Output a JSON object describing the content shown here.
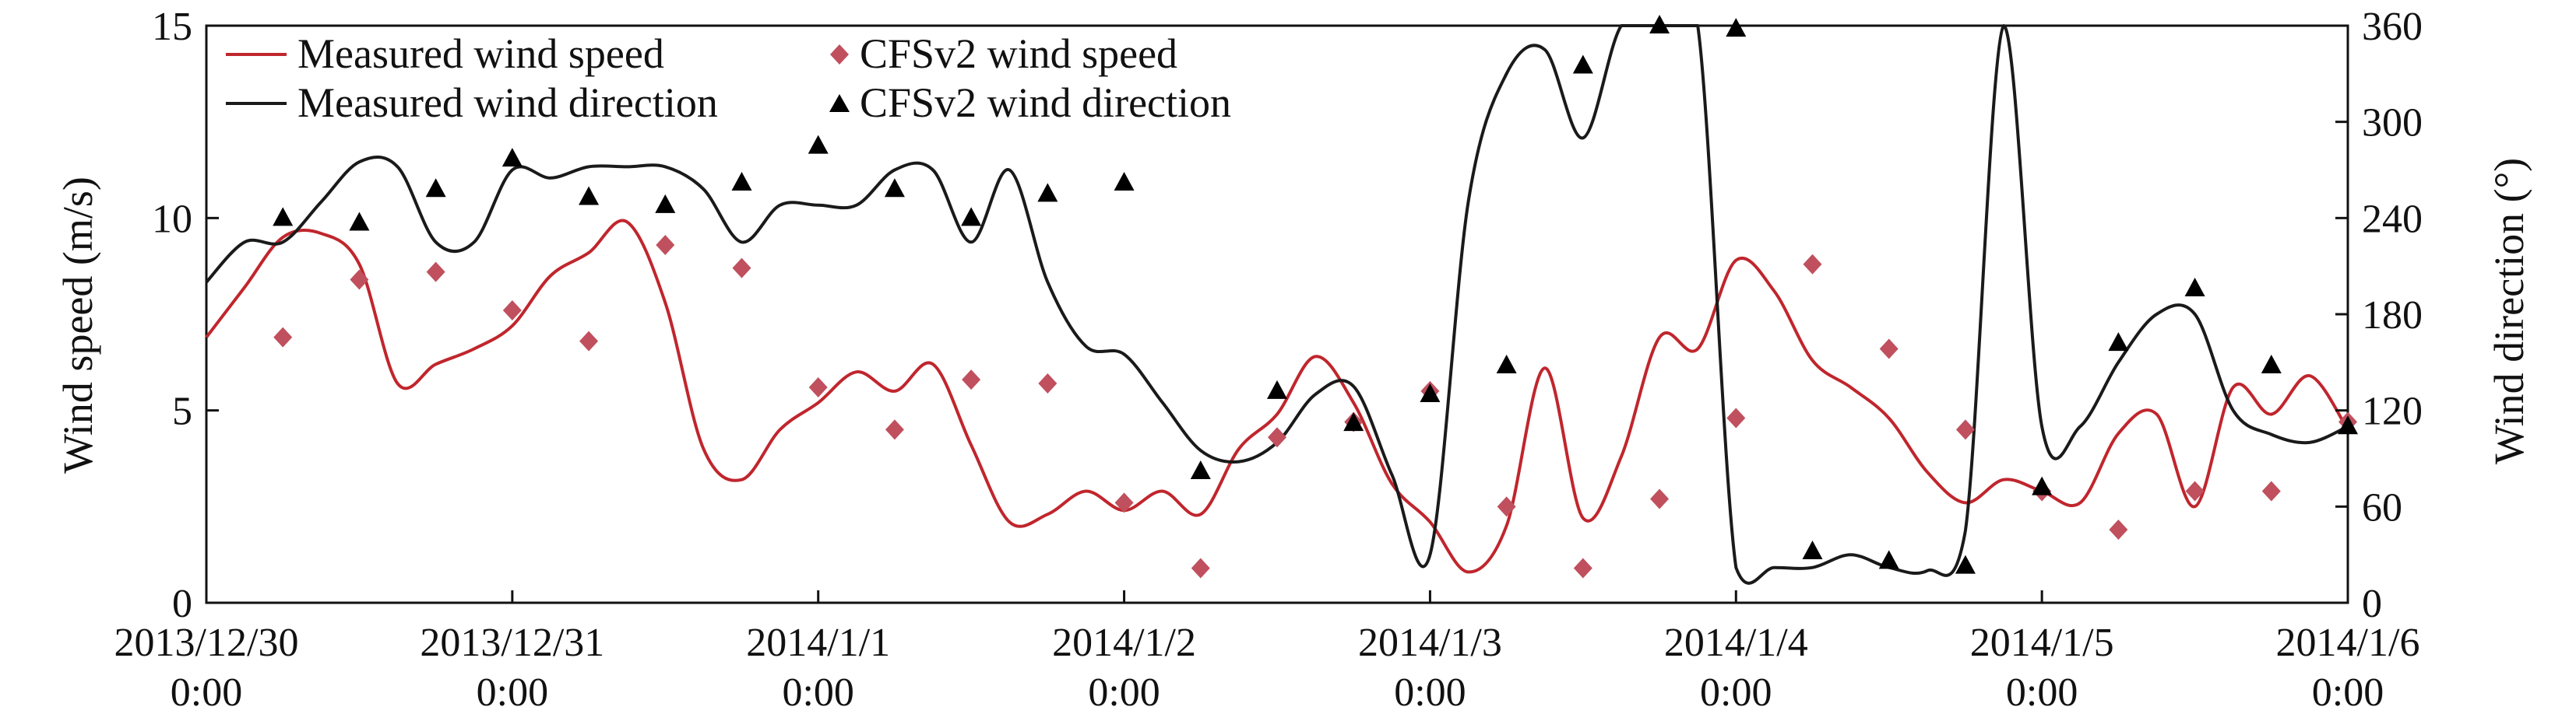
{
  "chart_data": {
    "type": "line",
    "x_tick_labels": [
      [
        "2013/12/30",
        "0:00"
      ],
      [
        "2013/12/31",
        "0:00"
      ],
      [
        "2014/1/1",
        "0:00"
      ],
      [
        "2014/1/2",
        "0:00"
      ],
      [
        "2014/1/3",
        "0:00"
      ],
      [
        "2014/1/4",
        "0:00"
      ],
      [
        "2014/1/5",
        "0:00"
      ],
      [
        "2014/1/6",
        "0:00"
      ]
    ],
    "x_range": [
      "2013-12-30T00:00",
      "2014-01-06T00:00"
    ],
    "ylabel_left": "Wind speed (m/s)",
    "ylabel_right": "Wind direction (°)",
    "ylim_left": [
      0,
      15
    ],
    "ylim_right": [
      0,
      360
    ],
    "yticks_left": [
      "0",
      "5",
      "10",
      "15"
    ],
    "yticks_right": [
      "0",
      "60",
      "120",
      "180",
      "240",
      "300",
      "360"
    ],
    "grid": false,
    "legend_position": "top-left",
    "colors": {
      "measured_speed": "#c0262d",
      "measured_direction": "#1a1a1a",
      "cfs_speed": "#c0505e",
      "cfs_direction": "#000000"
    },
    "legend": {
      "measured_speed": "Measured wind speed",
      "cfs_speed": "CFSv2 wind speed",
      "measured_direction": "Measured wind direction",
      "cfs_direction": "CFSv2 wind direction"
    },
    "series": [
      {
        "name": "Measured wind speed",
        "axis": "left",
        "style": "line",
        "x": [
          "2013-12-30T00:00",
          "2013-12-30T03:00",
          "2013-12-30T06:00",
          "2013-12-30T09:00",
          "2013-12-30T12:00",
          "2013-12-30T15:00",
          "2013-12-30T18:00",
          "2013-12-30T21:00",
          "2013-12-31T00:00",
          "2013-12-31T03:00",
          "2013-12-31T06:00",
          "2013-12-31T09:00",
          "2013-12-31T12:00",
          "2013-12-31T15:00",
          "2013-12-31T18:00",
          "2013-12-31T21:00",
          "2014-01-01T00:00",
          "2014-01-01T03:00",
          "2014-01-01T06:00",
          "2014-01-01T09:00",
          "2014-01-01T12:00",
          "2014-01-01T15:00",
          "2014-01-01T18:00",
          "2014-01-01T21:00",
          "2014-01-02T00:00",
          "2014-01-02T03:00",
          "2014-01-02T06:00",
          "2014-01-02T09:00",
          "2014-01-02T12:00",
          "2014-01-02T15:00",
          "2014-01-02T18:00",
          "2014-01-02T21:00",
          "2014-01-03T00:00",
          "2014-01-03T03:00",
          "2014-01-03T06:00",
          "2014-01-03T09:00",
          "2014-01-03T12:00",
          "2014-01-03T15:00",
          "2014-01-03T18:00",
          "2014-01-03T21:00",
          "2014-01-04T00:00",
          "2014-01-04T03:00",
          "2014-01-04T06:00",
          "2014-01-04T09:00",
          "2014-01-04T12:00",
          "2014-01-04T15:00",
          "2014-01-04T18:00",
          "2014-01-04T21:00",
          "2014-01-05T00:00",
          "2014-01-05T03:00",
          "2014-01-05T06:00",
          "2014-01-05T09:00",
          "2014-01-05T12:00",
          "2014-01-05T15:00",
          "2014-01-05T18:00",
          "2014-01-05T21:00",
          "2014-01-06T00:00"
        ],
        "values": [
          6.9,
          8.2,
          9.5,
          9.6,
          8.8,
          5.7,
          6.2,
          6.6,
          7.2,
          8.5,
          9.1,
          9.9,
          7.8,
          4.0,
          3.2,
          4.5,
          5.2,
          6.0,
          5.5,
          6.2,
          4.1,
          2.1,
          2.3,
          2.9,
          2.4,
          2.9,
          2.3,
          4.0,
          4.9,
          6.4,
          5.2,
          3.1,
          2.1,
          0.8,
          2.0,
          6.1,
          2.2,
          3.8,
          6.9,
          6.6,
          8.9,
          8.1,
          6.3,
          5.6,
          4.8,
          3.4,
          2.6,
          3.2,
          2.9,
          2.6,
          4.4,
          4.9,
          2.5,
          5.6,
          4.9,
          5.9,
          4.5
        ]
      },
      {
        "name": "Measured wind direction",
        "axis": "right",
        "style": "line",
        "x": [
          "2013-12-30T00:00",
          "2013-12-30T03:00",
          "2013-12-30T06:00",
          "2013-12-30T09:00",
          "2013-12-30T12:00",
          "2013-12-30T15:00",
          "2013-12-30T18:00",
          "2013-12-30T21:00",
          "2013-12-31T00:00",
          "2013-12-31T03:00",
          "2013-12-31T06:00",
          "2013-12-31T09:00",
          "2013-12-31T12:00",
          "2013-12-31T15:00",
          "2013-12-31T18:00",
          "2013-12-31T21:00",
          "2014-01-01T00:00",
          "2014-01-01T03:00",
          "2014-01-01T06:00",
          "2014-01-01T09:00",
          "2014-01-01T12:00",
          "2014-01-01T15:00",
          "2014-01-01T18:00",
          "2014-01-01T21:00",
          "2014-01-02T00:00",
          "2014-01-02T03:00",
          "2014-01-02T06:00",
          "2014-01-02T09:00",
          "2014-01-02T12:00",
          "2014-01-02T15:00",
          "2014-01-02T18:00",
          "2014-01-02T21:00",
          "2014-01-03T00:00",
          "2014-01-03T03:00",
          "2014-01-03T06:00",
          "2014-01-03T09:00",
          "2014-01-03T12:00",
          "2014-01-03T15:00",
          "2014-01-03T18:00",
          "2014-01-03T21:00",
          "2014-01-04T00:00",
          "2014-01-04T03:00",
          "2014-01-04T06:00",
          "2014-01-04T09:00",
          "2014-01-04T12:00",
          "2014-01-04T15:00",
          "2014-01-04T18:00",
          "2014-01-04T21:00",
          "2014-01-05T00:00",
          "2014-01-05T03:00",
          "2014-01-05T06:00",
          "2014-01-05T09:00",
          "2014-01-05T12:00",
          "2014-01-05T15:00",
          "2014-01-05T18:00",
          "2014-01-05T21:00",
          "2014-01-06T00:00"
        ],
        "values": [
          200,
          225,
          225,
          250,
          275,
          272,
          225,
          225,
          270,
          265,
          272,
          272,
          272,
          258,
          225,
          248,
          248,
          248,
          270,
          270,
          225,
          270,
          200,
          160,
          155,
          125,
          95,
          88,
          100,
          130,
          135,
          80,
          30,
          250,
          330,
          345,
          290,
          360,
          360,
          360,
          22,
          22,
          22,
          30,
          22,
          20,
          45,
          360,
          110,
          110,
          150,
          180,
          180,
          120,
          105,
          100,
          110
        ]
      },
      {
        "name": "CFSv2 wind speed",
        "axis": "left",
        "style": "marker-diamond",
        "x": [
          "2013-12-30T06:00",
          "2013-12-30T12:00",
          "2013-12-30T18:00",
          "2013-12-31T00:00",
          "2013-12-31T06:00",
          "2013-12-31T12:00",
          "2013-12-31T18:00",
          "2014-01-01T00:00",
          "2014-01-01T06:00",
          "2014-01-01T12:00",
          "2014-01-01T18:00",
          "2014-01-02T00:00",
          "2014-01-02T06:00",
          "2014-01-02T12:00",
          "2014-01-02T18:00",
          "2014-01-03T00:00",
          "2014-01-03T06:00",
          "2014-01-03T12:00",
          "2014-01-03T18:00",
          "2014-01-04T00:00",
          "2014-01-04T06:00",
          "2014-01-04T12:00",
          "2014-01-04T18:00",
          "2014-01-05T00:00",
          "2014-01-05T06:00",
          "2014-01-05T12:00",
          "2014-01-05T18:00",
          "2014-01-06T00:00"
        ],
        "values": [
          6.9,
          8.4,
          8.6,
          7.6,
          6.8,
          9.3,
          8.7,
          5.6,
          4.5,
          5.8,
          5.7,
          2.6,
          0.9,
          4.3,
          4.7,
          5.5,
          2.5,
          0.9,
          2.7,
          4.8,
          8.8,
          6.6,
          4.5,
          2.9,
          1.9,
          2.9,
          2.9,
          4.7
        ]
      },
      {
        "name": "CFSv2 wind direction",
        "axis": "right",
        "style": "marker-triangle",
        "x": [
          "2013-12-30T06:00",
          "2013-12-30T12:00",
          "2013-12-30T18:00",
          "2013-12-31T00:00",
          "2013-12-31T06:00",
          "2013-12-31T12:00",
          "2013-12-31T18:00",
          "2014-01-01T00:00",
          "2014-01-01T06:00",
          "2014-01-01T12:00",
          "2014-01-01T18:00",
          "2014-01-02T00:00",
          "2014-01-02T06:00",
          "2014-01-02T12:00",
          "2014-01-02T18:00",
          "2014-01-03T00:00",
          "2014-01-03T06:00",
          "2014-01-03T12:00",
          "2014-01-03T18:00",
          "2014-01-04T00:00",
          "2014-01-04T06:00",
          "2014-01-04T12:00",
          "2014-01-04T18:00",
          "2014-01-05T00:00",
          "2014-01-05T06:00",
          "2014-01-05T12:00",
          "2014-01-05T18:00",
          "2014-01-06T00:00"
        ],
        "values": [
          240,
          237,
          258,
          277,
          253,
          248,
          262,
          285,
          258,
          240,
          255,
          262,
          82,
          132,
          112,
          130,
          148,
          335,
          360,
          358,
          32,
          26,
          23,
          72,
          162,
          196,
          148,
          110
        ]
      }
    ]
  }
}
